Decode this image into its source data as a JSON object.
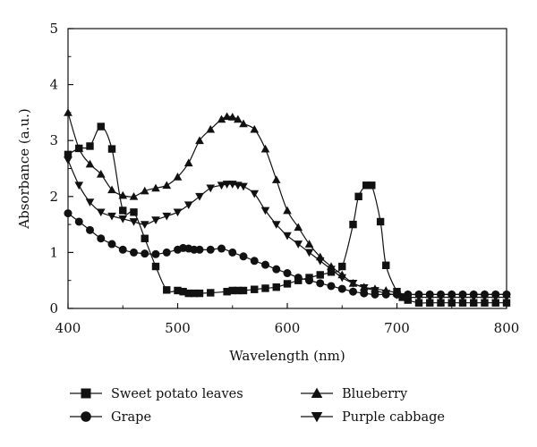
{
  "chart_data": {
    "type": "line",
    "xlabel": "Wavelength (nm)",
    "ylabel": "Absorbance (a.u.)",
    "xlim": [
      400,
      800
    ],
    "ylim": [
      0,
      5
    ],
    "xticks": [
      "400",
      "500",
      "600",
      "700",
      "800"
    ],
    "yticks": [
      "0",
      "1",
      "2",
      "3",
      "4",
      "5"
    ],
    "grid": false,
    "legend_position": "bottom",
    "series": [
      {
        "name": "Sweet potato leaves",
        "marker": "square",
        "x": [
          400,
          410,
          420,
          430,
          440,
          450,
          460,
          470,
          480,
          490,
          500,
          505,
          510,
          515,
          520,
          530,
          545,
          550,
          555,
          560,
          570,
          580,
          590,
          600,
          610,
          620,
          630,
          640,
          650,
          660,
          665,
          672,
          677,
          685,
          690,
          700,
          705,
          710,
          720,
          730,
          740,
          750,
          760,
          770,
          780,
          790,
          800
        ],
        "y": [
          2.75,
          2.86,
          2.9,
          3.25,
          2.85,
          1.75,
          1.72,
          1.25,
          0.75,
          0.33,
          0.32,
          0.3,
          0.27,
          0.27,
          0.27,
          0.28,
          0.3,
          0.32,
          0.32,
          0.32,
          0.34,
          0.36,
          0.38,
          0.44,
          0.5,
          0.55,
          0.6,
          0.65,
          0.75,
          1.5,
          2.0,
          2.2,
          2.2,
          1.55,
          0.77,
          0.3,
          0.2,
          0.15,
          0.1,
          0.1,
          0.1,
          0.1,
          0.1,
          0.1,
          0.1,
          0.1,
          0.1
        ]
      },
      {
        "name": "Grape",
        "marker": "circle",
        "x": [
          400,
          410,
          420,
          430,
          440,
          450,
          460,
          470,
          480,
          490,
          500,
          505,
          510,
          515,
          520,
          530,
          540,
          550,
          560,
          570,
          580,
          590,
          600,
          610,
          620,
          630,
          640,
          650,
          660,
          670,
          680,
          690,
          700,
          710,
          720,
          730,
          740,
          750,
          760,
          770,
          780,
          790,
          800
        ],
        "y": [
          1.7,
          1.55,
          1.4,
          1.25,
          1.15,
          1.05,
          1.0,
          0.98,
          0.97,
          1.0,
          1.05,
          1.08,
          1.07,
          1.05,
          1.05,
          1.05,
          1.07,
          1.0,
          0.93,
          0.85,
          0.78,
          0.7,
          0.63,
          0.55,
          0.5,
          0.45,
          0.4,
          0.35,
          0.3,
          0.27,
          0.25,
          0.25,
          0.25,
          0.25,
          0.25,
          0.25,
          0.25,
          0.25,
          0.25,
          0.25,
          0.25,
          0.25,
          0.25
        ]
      },
      {
        "name": "Blueberry",
        "marker": "triangle-up",
        "x": [
          400,
          410,
          420,
          430,
          440,
          450,
          460,
          470,
          480,
          490,
          500,
          510,
          520,
          530,
          540,
          545,
          550,
          555,
          560,
          570,
          580,
          590,
          600,
          610,
          620,
          630,
          640,
          650,
          660,
          670,
          680,
          690,
          700,
          710,
          720,
          730,
          740,
          750,
          760,
          770,
          780,
          790,
          800
        ],
        "y": [
          3.5,
          2.86,
          2.58,
          2.4,
          2.12,
          2.02,
          2.0,
          2.1,
          2.15,
          2.2,
          2.35,
          2.6,
          3.0,
          3.2,
          3.38,
          3.43,
          3.42,
          3.38,
          3.3,
          3.2,
          2.85,
          2.3,
          1.75,
          1.45,
          1.15,
          0.92,
          0.75,
          0.6,
          0.45,
          0.38,
          0.35,
          0.32,
          0.28,
          0.25,
          0.25,
          0.25,
          0.25,
          0.25,
          0.25,
          0.25,
          0.25,
          0.25,
          0.25
        ]
      },
      {
        "name": "Purple cabbage",
        "marker": "triangle-down",
        "x": [
          400,
          410,
          420,
          430,
          440,
          450,
          460,
          470,
          480,
          490,
          500,
          510,
          520,
          530,
          540,
          545,
          550,
          555,
          560,
          570,
          580,
          590,
          600,
          610,
          620,
          630,
          640,
          650,
          660,
          670,
          680,
          690,
          700,
          710,
          720,
          730,
          740,
          750,
          760,
          770,
          780,
          790,
          800
        ],
        "y": [
          2.65,
          2.2,
          1.9,
          1.72,
          1.65,
          1.6,
          1.55,
          1.5,
          1.58,
          1.65,
          1.72,
          1.85,
          2.0,
          2.15,
          2.2,
          2.22,
          2.22,
          2.2,
          2.18,
          2.05,
          1.75,
          1.5,
          1.3,
          1.15,
          1.0,
          0.85,
          0.7,
          0.55,
          0.45,
          0.37,
          0.32,
          0.27,
          0.24,
          0.2,
          0.2,
          0.2,
          0.2,
          0.2,
          0.2,
          0.2,
          0.2,
          0.2,
          0.2
        ]
      }
    ]
  }
}
